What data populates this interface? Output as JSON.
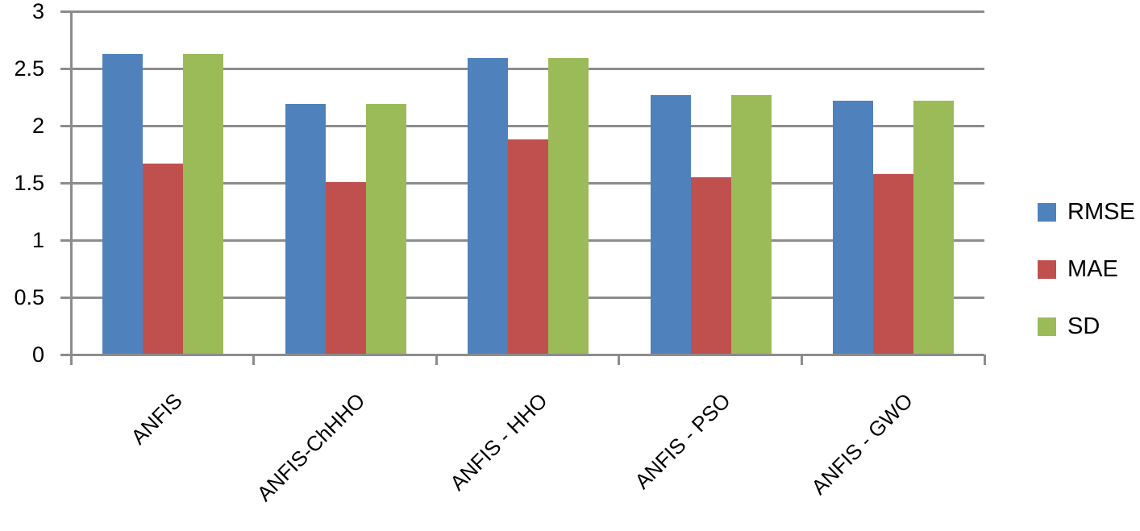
{
  "chart_data": {
    "type": "bar",
    "title": "",
    "xlabel": "",
    "ylabel": "",
    "categories": [
      "ANFIS",
      "ANFIS-ChHHO",
      "ANFIS - HHO",
      "ANFIS - PSO",
      "ANFIS - GWO"
    ],
    "series": [
      {
        "name": "RMSE",
        "color": "#4F81BD",
        "values": [
          2.63,
          2.19,
          2.59,
          2.27,
          2.22
        ]
      },
      {
        "name": "MAE",
        "color": "#C0504D",
        "values": [
          1.67,
          1.51,
          1.88,
          1.55,
          1.58
        ]
      },
      {
        "name": "SD",
        "color": "#9BBB59",
        "values": [
          2.63,
          2.19,
          2.59,
          2.27,
          2.22
        ]
      }
    ],
    "ylim": [
      0,
      3
    ],
    "ytick_interval": 0.5,
    "ytick_labels": [
      "0",
      "0.5",
      "1",
      "1.5",
      "2",
      "2.5",
      "3"
    ],
    "grid": true,
    "legend_position": "right",
    "colors": {
      "grid": "#8C8C8C",
      "axis": "#8C8C8C",
      "text": "#000000",
      "background": "#FFFFFF"
    }
  }
}
